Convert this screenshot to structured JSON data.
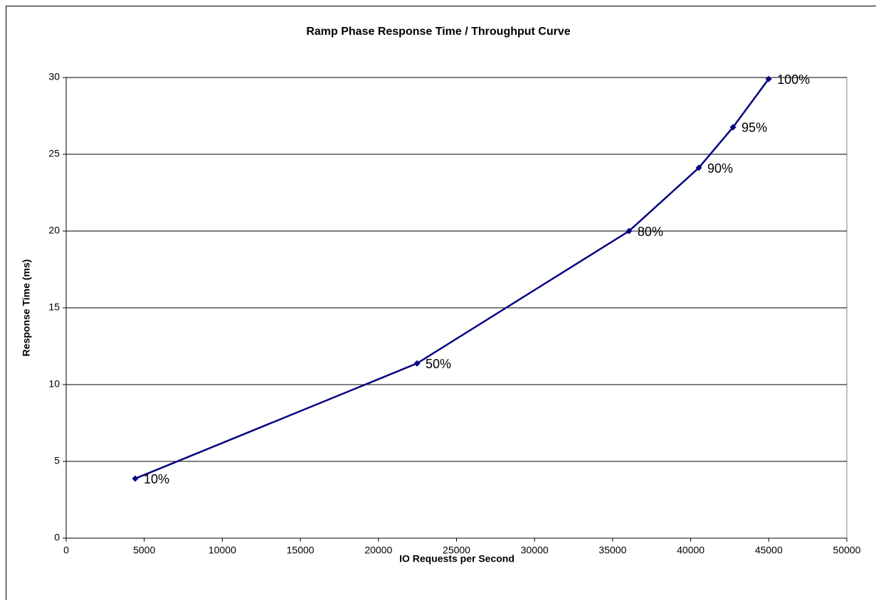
{
  "chart_data": {
    "type": "line",
    "title": "Ramp Phase Response Time / Throughput Curve",
    "xlabel": "IO Requests per Second",
    "ylabel": "Response Time (ms)",
    "x": [
      4420,
      22470,
      36050,
      40520,
      42710,
      44990
    ],
    "series": [
      {
        "name": "Response Time",
        "color": "#000080",
        "values": [
          3.88,
          11.38,
          20.0,
          24.12,
          26.76,
          29.9
        ]
      }
    ],
    "point_labels": [
      "10%",
      "50%",
      "80%",
      "90%",
      "95%",
      "100%"
    ],
    "xlim": [
      0,
      50000
    ],
    "xticks": [
      0,
      5000,
      10000,
      15000,
      20000,
      25000,
      30000,
      35000,
      40000,
      45000,
      50000
    ],
    "ylim": [
      0,
      30
    ],
    "yticks": [
      0,
      5,
      10,
      15,
      20,
      25,
      30
    ],
    "grid": true
  }
}
